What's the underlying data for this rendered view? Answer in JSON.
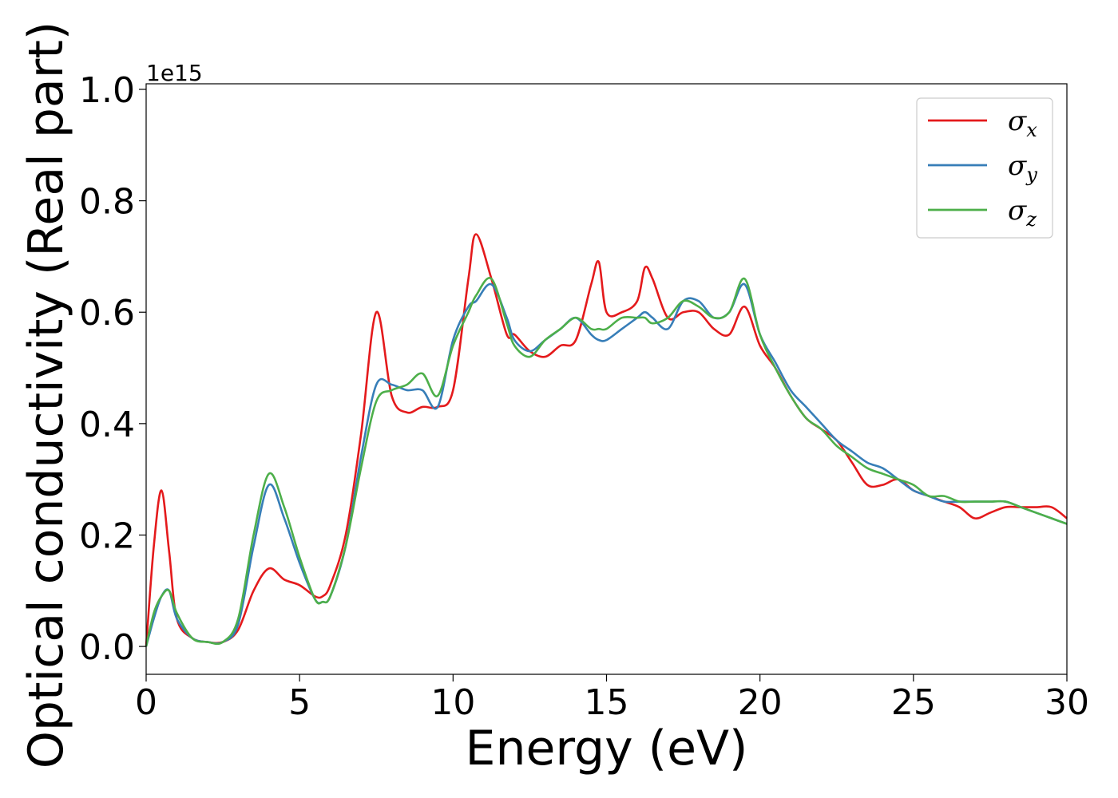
{
  "chart_data": {
    "type": "line",
    "title": "",
    "xlabel": "Energy (eV)",
    "ylabel": "Optical conductivity (Real part)",
    "y_offset_label": "1e15",
    "xlim": [
      0,
      30
    ],
    "ylim": [
      -0.05,
      1.01
    ],
    "x_ticks": [
      0,
      5,
      10,
      15,
      20,
      25,
      30
    ],
    "x_tick_labels": [
      "0",
      "5",
      "10",
      "15",
      "20",
      "25",
      "30"
    ],
    "y_ticks": [
      0.0,
      0.2,
      0.4,
      0.6,
      0.8,
      1.0
    ],
    "y_tick_labels": [
      "0.0",
      "0.2",
      "0.4",
      "0.6",
      "0.8",
      "1.0"
    ],
    "grid": false,
    "legend_position": "top-right",
    "x": [
      0,
      0.25,
      0.5,
      0.75,
      1.0,
      1.5,
      2.0,
      2.5,
      3.0,
      3.5,
      4.0,
      4.5,
      5.0,
      5.5,
      5.75,
      6.0,
      6.5,
      7.0,
      7.5,
      8.0,
      8.5,
      9.0,
      9.5,
      10.0,
      10.5,
      10.75,
      11.25,
      11.75,
      12.0,
      12.5,
      13.0,
      13.5,
      14.0,
      14.5,
      14.75,
      15.0,
      15.5,
      16.0,
      16.25,
      16.5,
      17.0,
      17.5,
      18.0,
      18.5,
      19.0,
      19.5,
      20.0,
      20.5,
      21.0,
      21.5,
      22.0,
      22.5,
      23.0,
      23.5,
      24.0,
      24.5,
      25.0,
      25.5,
      26.0,
      26.5,
      27.0,
      27.5,
      28.0,
      28.5,
      29.0,
      29.5,
      30.0
    ],
    "series": [
      {
        "name": "σx",
        "label_main": "σ",
        "label_sub": "x",
        "color": "#e41a1c",
        "values": [
          0.0,
          0.18,
          0.28,
          0.17,
          0.05,
          0.015,
          0.008,
          0.008,
          0.03,
          0.1,
          0.14,
          0.12,
          0.11,
          0.09,
          0.09,
          0.11,
          0.2,
          0.38,
          0.6,
          0.45,
          0.42,
          0.43,
          0.43,
          0.46,
          0.66,
          0.74,
          0.66,
          0.56,
          0.56,
          0.53,
          0.52,
          0.54,
          0.55,
          0.65,
          0.69,
          0.6,
          0.6,
          0.62,
          0.68,
          0.66,
          0.59,
          0.6,
          0.6,
          0.57,
          0.56,
          0.61,
          0.54,
          0.5,
          0.45,
          0.41,
          0.39,
          0.37,
          0.33,
          0.29,
          0.29,
          0.3,
          0.28,
          0.27,
          0.26,
          0.25,
          0.23,
          0.24,
          0.25,
          0.25,
          0.25,
          0.25,
          0.23
        ]
      },
      {
        "name": "σy",
        "label_main": "σ",
        "label_sub": "y",
        "color": "#377eb8",
        "values": [
          0.0,
          0.05,
          0.09,
          0.1,
          0.05,
          0.015,
          0.008,
          0.008,
          0.04,
          0.18,
          0.29,
          0.23,
          0.15,
          0.085,
          0.08,
          0.09,
          0.18,
          0.34,
          0.47,
          0.47,
          0.46,
          0.46,
          0.43,
          0.55,
          0.61,
          0.62,
          0.65,
          0.59,
          0.55,
          0.53,
          0.55,
          0.57,
          0.59,
          0.56,
          0.55,
          0.55,
          0.57,
          0.59,
          0.6,
          0.59,
          0.57,
          0.62,
          0.62,
          0.59,
          0.6,
          0.65,
          0.56,
          0.51,
          0.46,
          0.43,
          0.4,
          0.37,
          0.35,
          0.33,
          0.32,
          0.3,
          0.28,
          0.27,
          0.26,
          0.26,
          0.26,
          0.26,
          0.26,
          0.25,
          0.24,
          0.23,
          0.22
        ]
      },
      {
        "name": "σz",
        "label_main": "σ",
        "label_sub": "z",
        "color": "#4daf4a",
        "values": [
          0.0,
          0.06,
          0.09,
          0.1,
          0.06,
          0.015,
          0.008,
          0.008,
          0.05,
          0.2,
          0.31,
          0.25,
          0.16,
          0.085,
          0.08,
          0.09,
          0.18,
          0.32,
          0.44,
          0.46,
          0.47,
          0.49,
          0.45,
          0.54,
          0.6,
          0.63,
          0.66,
          0.58,
          0.54,
          0.52,
          0.55,
          0.57,
          0.59,
          0.57,
          0.57,
          0.57,
          0.59,
          0.59,
          0.59,
          0.58,
          0.59,
          0.62,
          0.61,
          0.59,
          0.6,
          0.66,
          0.56,
          0.5,
          0.45,
          0.41,
          0.39,
          0.36,
          0.34,
          0.32,
          0.31,
          0.3,
          0.29,
          0.27,
          0.27,
          0.26,
          0.26,
          0.26,
          0.26,
          0.25,
          0.24,
          0.23,
          0.22
        ]
      }
    ]
  }
}
